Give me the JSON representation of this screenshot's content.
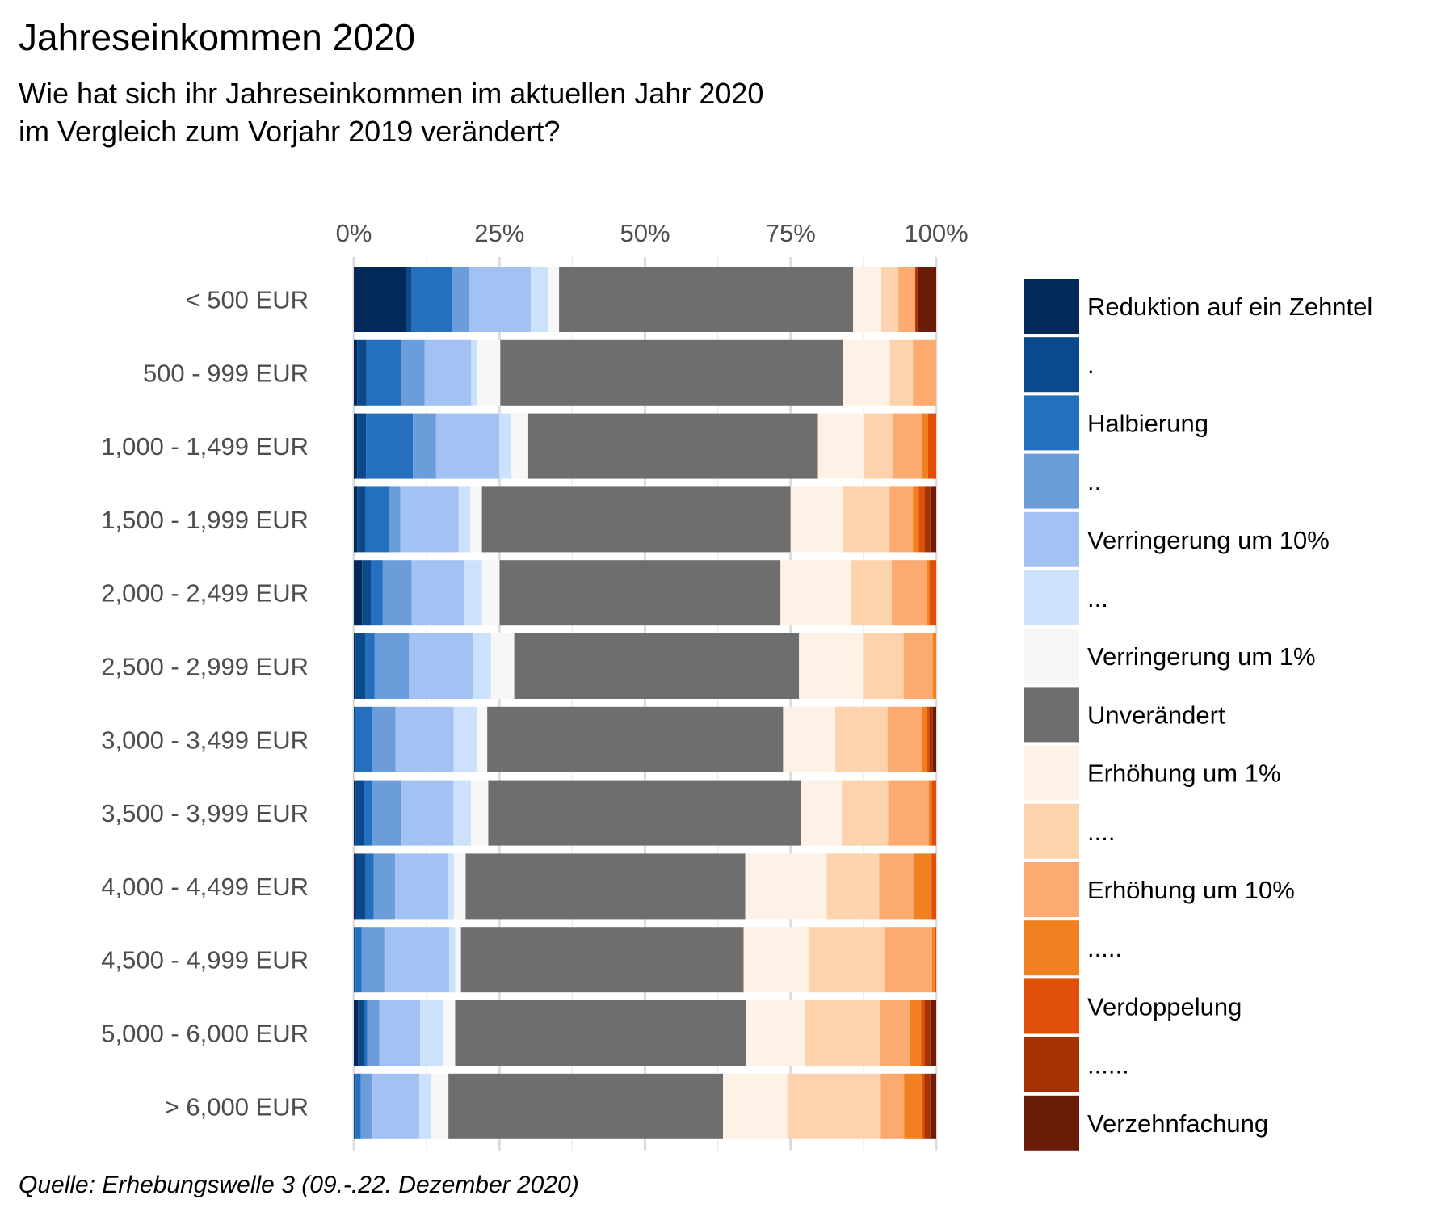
{
  "chart_data": {
    "type": "bar",
    "orientation": "horizontal",
    "stacked": true,
    "normalized": true,
    "title": "Jahreseinkommen 2020",
    "subtitle": [
      "Wie hat sich ihr Jahreseinkommen im aktuellen Jahr 2020",
      "im Vergleich zum Vorjahr 2019 verändert?"
    ],
    "caption": "Quelle: Erhebungswelle 3 (09.-.22. Dezember 2020)",
    "xlim": [
      0,
      100
    ],
    "xticks": [
      0,
      25,
      50,
      75,
      100
    ],
    "xtick_labels": [
      "0%",
      "25%",
      "50%",
      "75%",
      "100%"
    ],
    "x_axis_position": "top",
    "grid": true,
    "legend_position": "right",
    "categories": [
      "< 500 EUR",
      "500 - 999 EUR",
      "1,000 - 1,499 EUR",
      "1,500 - 1,999 EUR",
      "2,000 - 2,499 EUR",
      "2,500 - 2,999 EUR",
      "3,000 - 3,499 EUR",
      "3,500 - 3,999 EUR",
      "4,000 - 4,499 EUR",
      "4,500 - 4,999 EUR",
      "5,000 - 6,000 EUR",
      "> 6,000 EUR"
    ],
    "series": [
      {
        "name": "Reduktion auf ein Zehntel",
        "color": "#03295a",
        "values": [
          9.4,
          0.6,
          0.6,
          0.6,
          1.4,
          0.3,
          0.0,
          0.3,
          0.4,
          0.0,
          0.8,
          0.0
        ]
      },
      {
        "name": ".",
        "color": "#0a4a8c",
        "values": [
          0.8,
          1.6,
          1.5,
          1.4,
          1.5,
          1.7,
          0.2,
          1.5,
          1.6,
          0.3,
          1.0,
          0.3
        ]
      },
      {
        "name": "Halbierung",
        "color": "#2470be",
        "values": [
          7.1,
          6.0,
          8.1,
          4.0,
          2.0,
          1.6,
          3.0,
          1.4,
          1.4,
          1.0,
          0.5,
          0.9
        ]
      },
      {
        "name": "..",
        "color": "#6b9ddb",
        "values": [
          3.0,
          4.0,
          4.0,
          2.0,
          5.0,
          5.9,
          4.0,
          5.0,
          3.7,
          3.9,
          2.1,
          2.0
        ]
      },
      {
        "name": "Verringerung um 10%",
        "color": "#a2c2f4",
        "values": [
          11.0,
          8.0,
          10.9,
          10.0,
          9.0,
          11.1,
          10.0,
          9.0,
          9.1,
          11.0,
          7.0,
          8.0
        ]
      },
      {
        "name": "...",
        "color": "#cce1fc",
        "values": [
          3.0,
          1.0,
          2.0,
          2.0,
          3.0,
          3.0,
          4.0,
          3.0,
          1.0,
          1.0,
          4.0,
          2.0
        ]
      },
      {
        "name": "Verringerung um 1%",
        "color": "#f7f7f7",
        "values": [
          2.0,
          4.0,
          3.0,
          2.0,
          3.0,
          4.0,
          1.8,
          3.0,
          2.0,
          1.0,
          2.0,
          3.0
        ]
      },
      {
        "name": "Unverändert",
        "color": "#6e6e6e",
        "values": [
          52.0,
          59.0,
          50.0,
          53.0,
          48.0,
          49.0,
          51.0,
          54.0,
          48.0,
          48.0,
          50.0,
          47.0
        ]
      },
      {
        "name": "Erhöhung um 1%",
        "color": "#fef2e7",
        "values": [
          5.0,
          8.0,
          8.0,
          9.0,
          12.0,
          11.0,
          9.0,
          7.0,
          14.0,
          11.0,
          10.0,
          11.0
        ]
      },
      {
        "name": "....",
        "color": "#fdd3ae",
        "values": [
          3.0,
          4.0,
          5.0,
          8.0,
          7.0,
          7.0,
          9.0,
          8.0,
          9.0,
          13.0,
          13.0,
          16.0
        ]
      },
      {
        "name": "Erhöhung um 10%",
        "color": "#fcaa6f",
        "values": [
          3.0,
          4.0,
          5.0,
          4.0,
          6.0,
          5.0,
          6.0,
          7.0,
          6.0,
          8.0,
          5.0,
          4.0
        ]
      },
      {
        "name": ".....",
        "color": "#f18020",
        "values": [
          0.0,
          0.0,
          1.0,
          1.0,
          0.5,
          0.6,
          0.8,
          0.5,
          3.0,
          0.4,
          2.0,
          3.0
        ]
      },
      {
        "name": "Verdoppelung",
        "color": "#e04e08",
        "values": [
          0.0,
          0.0,
          1.4,
          1.0,
          1.1,
          0.0,
          0.4,
          0.8,
          0.8,
          0.3,
          0.6,
          0.5
        ]
      },
      {
        "name": "......",
        "color": "#a53104",
        "values": [
          0.4,
          0.0,
          0.0,
          1.0,
          0.0,
          0.0,
          0.6,
          0.0,
          0.0,
          0.0,
          1.0,
          1.0
        ]
      },
      {
        "name": "Verzehnfachung",
        "color": "#6b1c08",
        "values": [
          3.3,
          0.0,
          0.0,
          1.0,
          0.0,
          0.0,
          0.6,
          0.0,
          0.0,
          0.0,
          1.0,
          1.0
        ]
      }
    ]
  }
}
